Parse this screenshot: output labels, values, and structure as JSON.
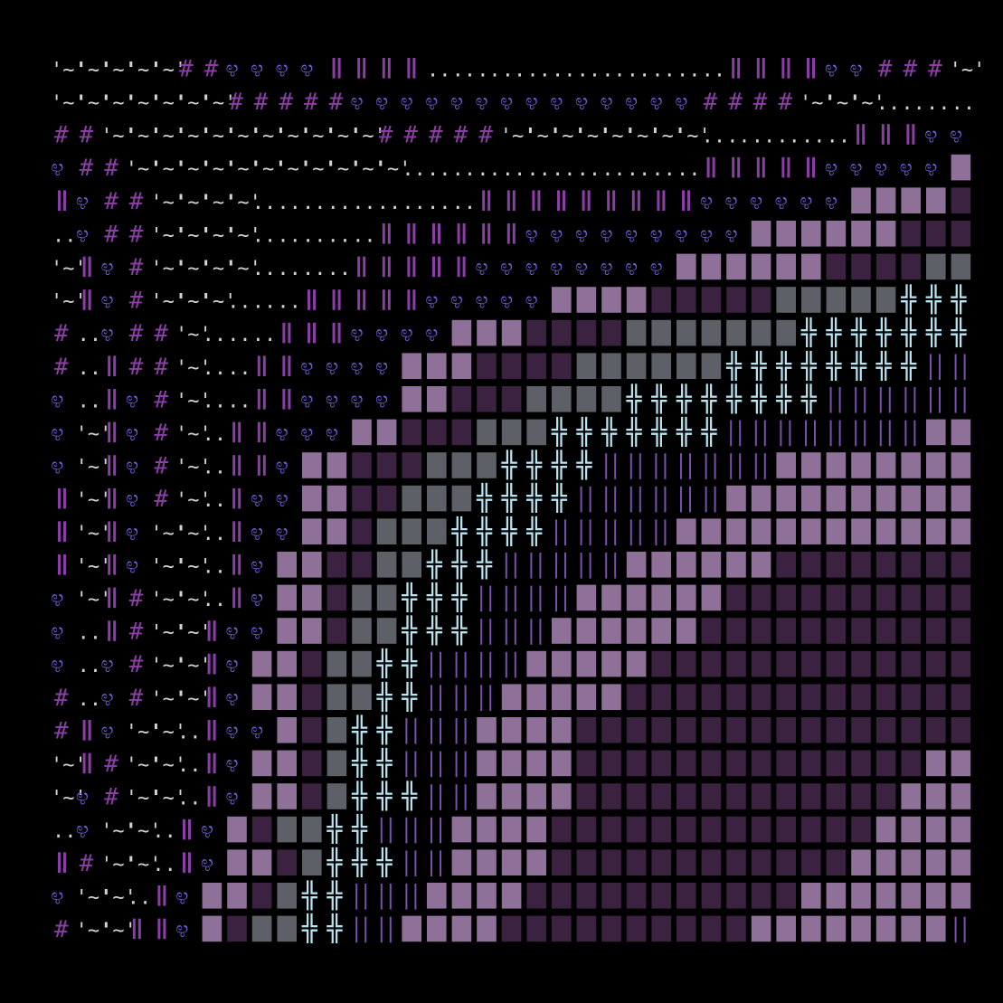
{
  "canvas": {
    "background": "#000000",
    "cols": 36,
    "rows": 36
  },
  "palette": {
    "a": "#8b3fa6",
    "b": "#6a5fd3",
    "c": "#8f7099",
    "d": "#a9aeb9",
    "e": "#b7e6f2",
    "f": "#5e3a63",
    "g": "#3a2240",
    "h": "#d3d3d3",
    "i": "#7a4fb0"
  },
  "glyphs": {
    "tilde": "'~'",
    "hash": "#",
    "swirl": "೪",
    "bar": "‖",
    "dots": "..",
    "block": "▓",
    "cross": "╬",
    "line": "|",
    "shade": "▒",
    "dense": "░"
  },
  "rows": [
    "TTTTTHHSSSSBBBBDDDDDDDDDDDDBBBBSSHHHT",
    "TTTTTTTHHHHHSSSSSSSSSSSSSSHHHHTTTDDDD",
    "HHTTTTTTTTTTTHHHHHTTTTTTTTDDDDDDBBBSS",
    "SHHTTTTTTTTTTTDDDDDDDDDDDDBBBBBSSSSSK",
    "BSHHTTTTDDDDDDDDDBBBBBBBBBSSSSSSKKKKQ",
    "DSHHTTTTDDDDDBBBBBBSSSSSSSSSKKKKKKQQQ",
    "TBSHTTTTDDDDBBBBBSSSSSSSSKKKKKKQQQQZZ",
    "TBSHTTTDDDBBBBBSSSSSKKKKQQQQQZZZZZXXX",
    "HDSHHTDDDBBBSSSSKKKQQQQZZZZZZZXXXXXXX",
    "HDBHHTDDBBSSSSKKKQQQQZZZZZZXXXXXXXXLL",
    "SDBSHTDDBBSSSSKKQQQZZZZXXXXXXXXLLLLLL",
    "STBSHTDBBSSSKKQQQZZZXXXXXXXLLLLLLLLKK",
    "STBSHTDBBSKKQQQZZZXXXXLLLLLLLKKKKKKKK",
    "BTBSHTDBSSKKQQZZZXXXXLLLLLLKKKKKKKKKK",
    "BTBSTTDBSSKKQZZZXXXXLLLLLKKKKKKKKKKKK",
    "BTBSTTDBSKKQQZZXXXLLLLLKKKKKKQQQQQQQQ",
    "STBHTTDBSKKQZZXXXLLLLKKKKKKQQQQQQQQQQ",
    "SDBHTTBSSKKQZZXXXLLLKKKKKKQQQQQQQQQQQ",
    "SDSHTTBSKKQZZXXLLLLKKKKKQQQQQQQQQQQQQ",
    "HDSHTTBSKKQZZXXLLLKKKKKQQQQQQQQQQQQQQ",
    "HBSTTDBSSKQZXXLLLKKKKQQQQQQQQQQQQQQQQ",
    "TBHTTDBSKKQZXXLLLKKKKQQQQQQQQQQQQQQKK",
    "TSHTTDBSKKQZXXXLLKKKKQQQQQQQQQQQQQKKK",
    "DSTTDBSKQZZXXLLLKKKKQQQQQQQQQQQQQKKKK",
    "BHTTDBSKKQZXXXLLKKKKQQQQQQQQQQQQKKKKK",
    "STTDBSKKQZXXLLLKKKKQQQQQQQQQQQKKKKKKK",
    "HTTBBSKQZZXXLLKKKKQQQQQQQQQQKKKKKKKKL"
  ]
}
